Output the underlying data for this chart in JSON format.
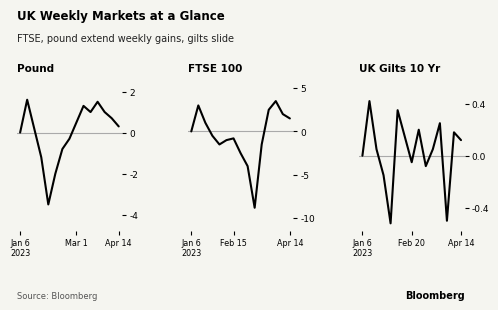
{
  "title": "UK Weekly Markets at a Glance",
  "subtitle": "FTSE, pound extend weekly gains, gilts slide",
  "source": "Source: Bloomberg",
  "brand": "Bloomberg",
  "bg_color": "#f5f5f0",
  "line_color": "#000000",
  "zero_line_color": "#aaaaaa",
  "panels": [
    {
      "label": "Pound",
      "yticks": [
        2,
        0,
        -2,
        -4
      ],
      "ylim": [
        -4.8,
        2.8
      ],
      "xtick_labels": [
        "Jan 6\n2023",
        "Mar 1",
        "Apr 14"
      ],
      "xtick_pos": [
        0,
        8,
        14
      ],
      "data_x": [
        0,
        1,
        2,
        3,
        4,
        5,
        6,
        7,
        8,
        9,
        10,
        11,
        12,
        13,
        14
      ],
      "data_y": [
        0.0,
        1.6,
        0.2,
        -1.2,
        -3.5,
        -2.0,
        -0.8,
        -0.3,
        0.5,
        1.3,
        1.0,
        1.5,
        1.0,
        0.7,
        0.3
      ]
    },
    {
      "label": "FTSE 100",
      "yticks": [
        5,
        0,
        -5,
        -10
      ],
      "ylim": [
        -11.5,
        6.5
      ],
      "xtick_labels": [
        "Jan 6\n2023",
        "Feb 15",
        "Apr 14"
      ],
      "xtick_pos": [
        0,
        6,
        14
      ],
      "data_x": [
        0,
        1,
        2,
        3,
        4,
        5,
        6,
        7,
        8,
        9,
        10,
        11,
        12,
        13,
        14
      ],
      "data_y": [
        0.0,
        3.0,
        1.0,
        -0.5,
        -1.5,
        -1.0,
        -0.8,
        -2.5,
        -4.0,
        -8.8,
        -1.5,
        2.5,
        3.5,
        2.0,
        1.5
      ]
    },
    {
      "label": "UK Gilts 10 Yr",
      "yticks": [
        0.4,
        0.0,
        -0.4
      ],
      "ylim": [
        -0.58,
        0.62
      ],
      "xtick_labels": [
        "Jan 6\n2023",
        "Feb 20",
        "Apr 14"
      ],
      "xtick_pos": [
        0,
        7,
        14
      ],
      "data_x": [
        0,
        1,
        2,
        3,
        4,
        5,
        6,
        7,
        8,
        9,
        10,
        11,
        12,
        13,
        14
      ],
      "data_y": [
        0.0,
        0.42,
        0.05,
        -0.15,
        -0.52,
        0.35,
        0.15,
        -0.05,
        0.2,
        -0.08,
        0.05,
        0.25,
        -0.5,
        0.18,
        0.12
      ]
    }
  ]
}
